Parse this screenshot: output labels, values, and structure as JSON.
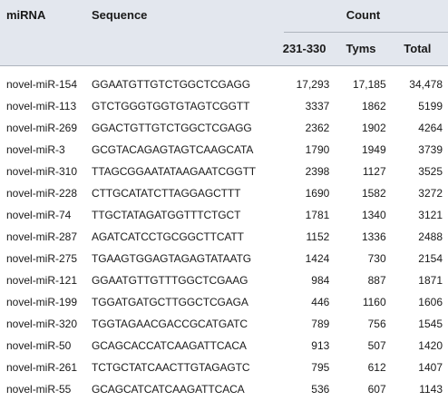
{
  "headers": {
    "mirna": "miRNA",
    "sequence": "Sequence",
    "count": "Count",
    "col_231": "231-330",
    "col_tyms": "Tyms",
    "col_total": "Total"
  },
  "rows": [
    {
      "mirna": "novel-miR-154",
      "sequence": "GGAATGTTGTCTGGCTCGAGG",
      "c231": "17,293",
      "tyms": "17,185",
      "total": "34,478"
    },
    {
      "mirna": "novel-miR-113",
      "sequence": "GTCTGGGTGGTGTAGTCGGTT",
      "c231": "3337",
      "tyms": "1862",
      "total": "5199"
    },
    {
      "mirna": "novel-miR-269",
      "sequence": "GGACTGTTGTCTGGCTCGAGG",
      "c231": "2362",
      "tyms": "1902",
      "total": "4264"
    },
    {
      "mirna": "novel-miR-3",
      "sequence": "GCGTACAGAGTAGTCAAGCATA",
      "c231": "1790",
      "tyms": "1949",
      "total": "3739"
    },
    {
      "mirna": "novel-miR-310",
      "sequence": "TTAGCGGAATATAAGAATCGGTT",
      "c231": "2398",
      "tyms": "1127",
      "total": "3525"
    },
    {
      "mirna": "novel-miR-228",
      "sequence": "CTTGCATATCTTAGGAGCTTT",
      "c231": "1690",
      "tyms": "1582",
      "total": "3272"
    },
    {
      "mirna": "novel-miR-74",
      "sequence": "TTGCTATAGATGGTTTCTGCT",
      "c231": "1781",
      "tyms": "1340",
      "total": "3121"
    },
    {
      "mirna": "novel-miR-287",
      "sequence": "AGATCATCCTGCGGCTTCATT",
      "c231": "1152",
      "tyms": "1336",
      "total": "2488"
    },
    {
      "mirna": "novel-miR-275",
      "sequence": "TGAAGTGGAGTAGAGTATAATG",
      "c231": "1424",
      "tyms": "730",
      "total": "2154"
    },
    {
      "mirna": "novel-miR-121",
      "sequence": "GGAATGTTGTTTGGCTCGAAG",
      "c231": "984",
      "tyms": "887",
      "total": "1871"
    },
    {
      "mirna": "novel-miR-199",
      "sequence": "TGGATGATGCTTGGCTCGAGA",
      "c231": "446",
      "tyms": "1160",
      "total": "1606"
    },
    {
      "mirna": "novel-miR-320",
      "sequence": "TGGTAGAACGACCGCATGATC",
      "c231": "789",
      "tyms": "756",
      "total": "1545"
    },
    {
      "mirna": "novel-miR-50",
      "sequence": "GCAGCACCATCAAGATTCACA",
      "c231": "913",
      "tyms": "507",
      "total": "1420"
    },
    {
      "mirna": "novel-miR-261",
      "sequence": "TCTGCTATCAACTTGTAGAGTC",
      "c231": "795",
      "tyms": "612",
      "total": "1407"
    },
    {
      "mirna": "novel-miR-55",
      "sequence": "GCAGCATCATCAAGATTCACA",
      "c231": "536",
      "tyms": "607",
      "total": "1143"
    }
  ]
}
